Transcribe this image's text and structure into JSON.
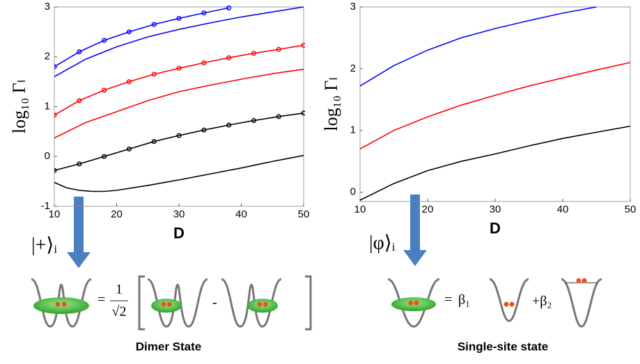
{
  "chart_data": [
    {
      "type": "line",
      "x_label": "D",
      "y_label": "log₁₀ Γₗ",
      "xlim": [
        10,
        50
      ],
      "ylim": [
        -1,
        3
      ],
      "xticks": [
        10,
        20,
        30,
        40,
        50
      ],
      "yticks": [
        -1,
        0,
        1,
        2,
        3
      ],
      "series": [
        {
          "color": "#0000ff",
          "markers": true,
          "x": [
            10,
            14,
            18,
            22,
            26,
            30,
            34,
            38
          ],
          "values": [
            1.8,
            2.1,
            2.33,
            2.5,
            2.65,
            2.77,
            2.88,
            2.98
          ]
        },
        {
          "color": "#0000ff",
          "markers": false,
          "x": [
            10,
            15,
            20,
            25,
            30,
            35,
            40,
            45,
            50
          ],
          "values": [
            1.6,
            1.95,
            2.2,
            2.4,
            2.55,
            2.68,
            2.8,
            2.9,
            3.0
          ]
        },
        {
          "color": "#ff0000",
          "markers": true,
          "x": [
            10,
            14,
            18,
            22,
            26,
            30,
            34,
            38,
            42,
            46,
            50
          ],
          "values": [
            0.83,
            1.12,
            1.33,
            1.5,
            1.65,
            1.77,
            1.88,
            1.98,
            2.07,
            2.15,
            2.23
          ]
        },
        {
          "color": "#ff0000",
          "markers": false,
          "x": [
            10,
            15,
            20,
            25,
            30,
            35,
            40,
            45,
            50
          ],
          "values": [
            0.37,
            0.68,
            0.9,
            1.12,
            1.3,
            1.43,
            1.55,
            1.66,
            1.75
          ]
        },
        {
          "color": "#000000",
          "markers": true,
          "x": [
            10,
            14,
            18,
            22,
            26,
            30,
            34,
            38,
            42,
            46,
            50
          ],
          "values": [
            -0.28,
            -0.15,
            0,
            0.15,
            0.3,
            0.42,
            0.53,
            0.63,
            0.72,
            0.8,
            0.87
          ]
        },
        {
          "color": "#000000",
          "markers": false,
          "x": [
            10,
            12,
            14,
            16,
            18,
            20,
            25,
            30,
            35,
            40,
            45,
            50
          ],
          "values": [
            -0.52,
            -0.63,
            -0.68,
            -0.7,
            -0.7,
            -0.68,
            -0.58,
            -0.47,
            -0.35,
            -0.23,
            -0.1,
            0.02
          ]
        }
      ]
    },
    {
      "type": "line",
      "x_label": "D",
      "y_label": "log₁₀ Γₗ",
      "xlim": [
        10,
        50
      ],
      "ylim": [
        -0.15,
        3
      ],
      "xticks": [
        10,
        20,
        30,
        40,
        50
      ],
      "yticks": [
        0,
        1,
        2,
        3
      ],
      "series": [
        {
          "color": "#0000ff",
          "markers": false,
          "x": [
            10,
            15,
            20,
            25,
            30,
            35,
            40,
            45
          ],
          "values": [
            1.72,
            2.05,
            2.3,
            2.5,
            2.65,
            2.78,
            2.9,
            3.0
          ]
        },
        {
          "color": "#ff0000",
          "markers": false,
          "x": [
            10,
            15,
            20,
            25,
            30,
            35,
            40,
            45,
            50
          ],
          "values": [
            0.7,
            1.0,
            1.22,
            1.41,
            1.57,
            1.72,
            1.85,
            1.98,
            2.1
          ]
        },
        {
          "color": "#000000",
          "markers": false,
          "x": [
            10,
            15,
            20,
            25,
            30,
            35,
            40,
            45,
            50
          ],
          "values": [
            -0.13,
            0.14,
            0.35,
            0.5,
            0.62,
            0.75,
            0.87,
            0.97,
            1.07
          ]
        }
      ]
    }
  ],
  "diagrams": [
    {
      "ket": "|+⟩ᵢ",
      "equals": "=",
      "numerator": "1",
      "denominator": "√2",
      "minus": "-",
      "caption": "Dimer State"
    },
    {
      "ket": "|φ⟩ᵢ",
      "equals": "=",
      "coef1": "β₁",
      "coef2": "+β₂",
      "caption": "Single-site state"
    }
  ]
}
